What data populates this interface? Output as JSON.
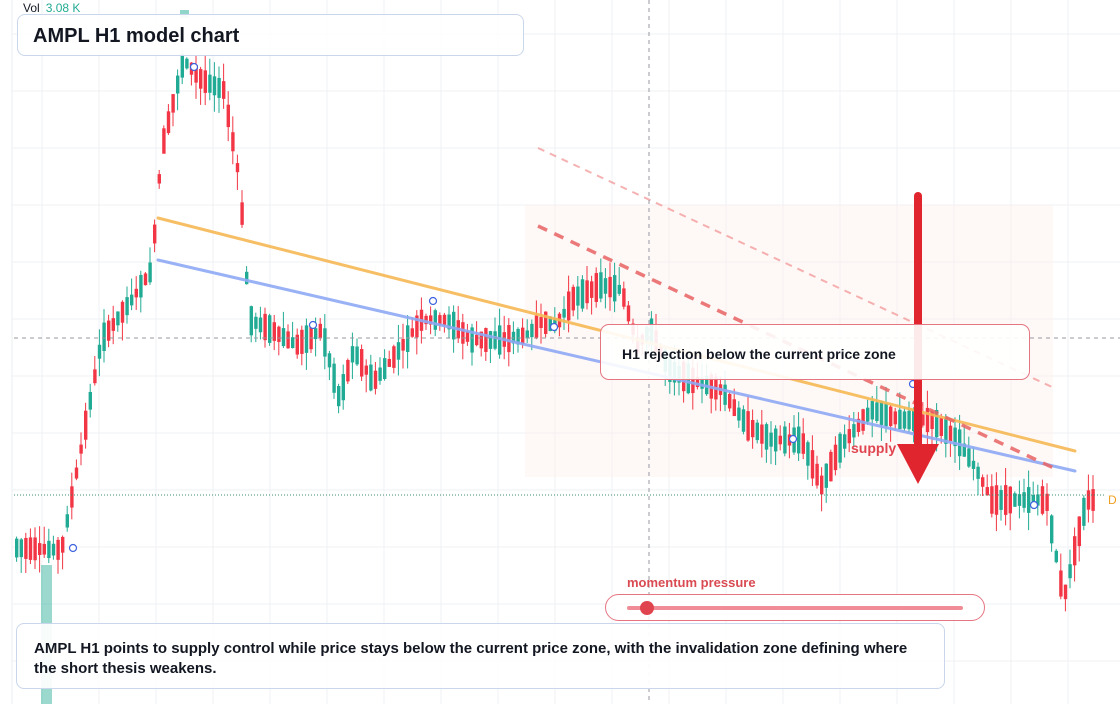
{
  "header": {
    "title": "AMPL H1 model chart"
  },
  "volume": {
    "label": "Vol",
    "value": "3.08 K"
  },
  "callout": {
    "text": "H1 rejection below the current price zone"
  },
  "zone": {
    "label": "supply"
  },
  "momentum": {
    "label": "momentum pressure",
    "level": 0.06
  },
  "summary": {
    "text": "AMPL H1 points to supply control while price stays below the current price zone, with the invalidation zone defining where the short thesis weakens."
  },
  "price_tag": {
    "text": "D"
  },
  "colors": {
    "up": "#22ab94",
    "down": "#f23645",
    "trend_orange": "#f7b955",
    "trend_blue": "#8fa9f5",
    "projection": "#f08080",
    "arrow": "#e0252f",
    "grid": "#eef0f4",
    "crosshair": "#9598a1",
    "current_price_line": "#3a8c6e"
  },
  "chart_data": {
    "type": "candlestick",
    "symbol": "AMPL",
    "timeframe": "H1",
    "ohlc_pattern": "sideways base, sharp rally to a peak, decline into a range, then a descending sell-off below resistance",
    "annotations": [
      "descending orange trendline",
      "descending blue trendline",
      "dashed projection channel",
      "downward arrow into supply zone",
      "current price dotted line"
    ]
  }
}
